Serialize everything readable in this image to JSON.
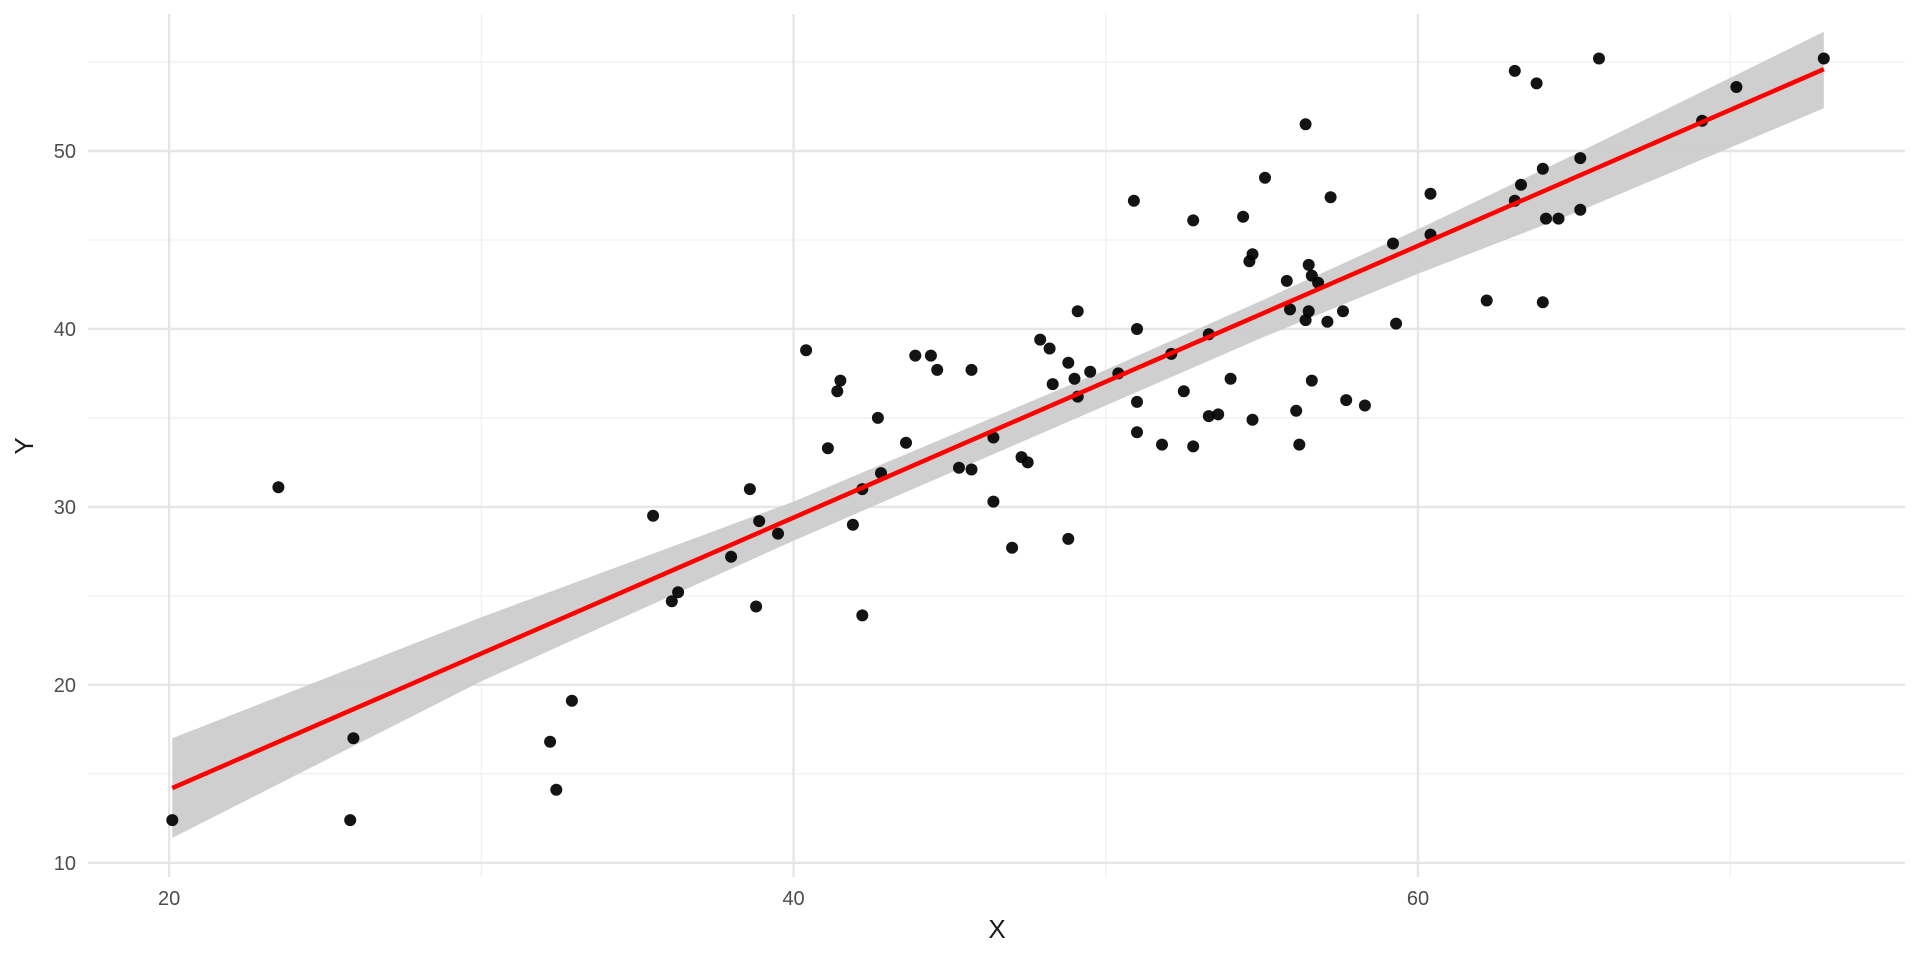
{
  "chart_data": {
    "type": "scatter",
    "title": "",
    "xlabel": "X",
    "ylabel": "Y",
    "xlim": [
      17.4,
      75.6
    ],
    "ylim": [
      9.2,
      57.7
    ],
    "x_ticks": [
      20,
      40,
      60
    ],
    "x_minor_ticks": [
      30,
      50,
      70
    ],
    "y_ticks": [
      10,
      20,
      30,
      40,
      50
    ],
    "y_minor_ticks": [
      15,
      25,
      35,
      45,
      55
    ],
    "grid": true,
    "theme": "minimal",
    "colors": {
      "points": "#000000",
      "fit_line": "#ff0000",
      "confidence_band": "#cccccc",
      "major_grid": "#e6e6e6",
      "minor_grid": "#f0f0f0"
    },
    "points": [
      {
        "x": 20.1,
        "y": 12.4
      },
      {
        "x": 23.5,
        "y": 31.1
      },
      {
        "x": 25.8,
        "y": 12.4
      },
      {
        "x": 25.9,
        "y": 17.0
      },
      {
        "x": 32.2,
        "y": 16.8
      },
      {
        "x": 32.4,
        "y": 14.1
      },
      {
        "x": 32.9,
        "y": 19.1
      },
      {
        "x": 35.5,
        "y": 29.5
      },
      {
        "x": 36.1,
        "y": 24.7
      },
      {
        "x": 36.3,
        "y": 25.2
      },
      {
        "x": 38.0,
        "y": 27.2
      },
      {
        "x": 38.6,
        "y": 31.0
      },
      {
        "x": 38.8,
        "y": 24.4
      },
      {
        "x": 38.9,
        "y": 29.2
      },
      {
        "x": 39.5,
        "y": 28.5
      },
      {
        "x": 40.4,
        "y": 38.8
      },
      {
        "x": 41.1,
        "y": 33.3
      },
      {
        "x": 41.4,
        "y": 36.5
      },
      {
        "x": 41.5,
        "y": 37.1
      },
      {
        "x": 41.9,
        "y": 29.0
      },
      {
        "x": 42.2,
        "y": 31.0
      },
      {
        "x": 42.2,
        "y": 23.9
      },
      {
        "x": 42.7,
        "y": 35.0
      },
      {
        "x": 42.8,
        "y": 31.9
      },
      {
        "x": 43.6,
        "y": 33.6
      },
      {
        "x": 43.9,
        "y": 38.5
      },
      {
        "x": 44.4,
        "y": 38.5
      },
      {
        "x": 44.6,
        "y": 37.7
      },
      {
        "x": 45.3,
        "y": 32.2
      },
      {
        "x": 45.7,
        "y": 37.7
      },
      {
        "x": 45.7,
        "y": 32.1
      },
      {
        "x": 46.4,
        "y": 33.9
      },
      {
        "x": 46.4,
        "y": 30.3
      },
      {
        "x": 47.0,
        "y": 27.7
      },
      {
        "x": 47.3,
        "y": 32.8
      },
      {
        "x": 47.5,
        "y": 32.5
      },
      {
        "x": 47.9,
        "y": 39.4
      },
      {
        "x": 48.2,
        "y": 38.9
      },
      {
        "x": 48.3,
        "y": 36.9
      },
      {
        "x": 48.8,
        "y": 38.1
      },
      {
        "x": 48.8,
        "y": 28.2
      },
      {
        "x": 49.0,
        "y": 37.2
      },
      {
        "x": 49.1,
        "y": 36.2
      },
      {
        "x": 49.1,
        "y": 41.0
      },
      {
        "x": 49.5,
        "y": 37.6
      },
      {
        "x": 50.4,
        "y": 37.5
      },
      {
        "x": 50.9,
        "y": 47.2
      },
      {
        "x": 51.0,
        "y": 40.0
      },
      {
        "x": 51.0,
        "y": 35.9
      },
      {
        "x": 51.0,
        "y": 34.2
      },
      {
        "x": 51.8,
        "y": 33.5
      },
      {
        "x": 52.1,
        "y": 38.6
      },
      {
        "x": 52.5,
        "y": 36.5
      },
      {
        "x": 52.8,
        "y": 33.4
      },
      {
        "x": 52.8,
        "y": 46.1
      },
      {
        "x": 53.3,
        "y": 39.7
      },
      {
        "x": 53.3,
        "y": 35.1
      },
      {
        "x": 53.6,
        "y": 35.2
      },
      {
        "x": 54.0,
        "y": 37.2
      },
      {
        "x": 54.4,
        "y": 46.3
      },
      {
        "x": 54.6,
        "y": 43.8
      },
      {
        "x": 54.7,
        "y": 44.2
      },
      {
        "x": 54.7,
        "y": 34.9
      },
      {
        "x": 55.1,
        "y": 48.5
      },
      {
        "x": 55.8,
        "y": 42.7
      },
      {
        "x": 55.9,
        "y": 41.1
      },
      {
        "x": 56.1,
        "y": 35.4
      },
      {
        "x": 56.2,
        "y": 33.5
      },
      {
        "x": 56.4,
        "y": 40.5
      },
      {
        "x": 56.4,
        "y": 51.5
      },
      {
        "x": 56.5,
        "y": 41.0
      },
      {
        "x": 56.5,
        "y": 43.6
      },
      {
        "x": 56.6,
        "y": 43.0
      },
      {
        "x": 56.6,
        "y": 37.1
      },
      {
        "x": 56.8,
        "y": 42.6
      },
      {
        "x": 57.1,
        "y": 40.4
      },
      {
        "x": 57.2,
        "y": 47.4
      },
      {
        "x": 57.6,
        "y": 41.0
      },
      {
        "x": 57.7,
        "y": 36.0
      },
      {
        "x": 58.3,
        "y": 35.7
      },
      {
        "x": 59.2,
        "y": 44.8
      },
      {
        "x": 59.3,
        "y": 40.3
      },
      {
        "x": 60.4,
        "y": 45.3
      },
      {
        "x": 60.4,
        "y": 47.6
      },
      {
        "x": 62.2,
        "y": 41.6
      },
      {
        "x": 63.1,
        "y": 47.2
      },
      {
        "x": 63.1,
        "y": 54.5
      },
      {
        "x": 63.3,
        "y": 48.1
      },
      {
        "x": 63.8,
        "y": 53.8
      },
      {
        "x": 64.0,
        "y": 49.0
      },
      {
        "x": 64.0,
        "y": 41.5
      },
      {
        "x": 64.1,
        "y": 46.2
      },
      {
        "x": 64.5,
        "y": 46.2
      },
      {
        "x": 65.2,
        "y": 49.6
      },
      {
        "x": 65.2,
        "y": 46.7
      },
      {
        "x": 65.8,
        "y": 55.2
      },
      {
        "x": 69.1,
        "y": 51.7
      },
      {
        "x": 70.2,
        "y": 53.6
      },
      {
        "x": 73.0,
        "y": 55.2
      }
    ],
    "fit_line": {
      "x": [
        20.1,
        73.0
      ],
      "y": [
        14.2,
        54.6
      ]
    },
    "confidence_band": {
      "x": [
        20.1,
        30.0,
        40.0,
        45.0,
        50.0,
        55.0,
        60.0,
        65.0,
        73.0
      ],
      "lower": [
        11.4,
        20.2,
        28.1,
        31.9,
        35.7,
        39.5,
        43.1,
        46.5,
        52.4
      ],
      "upper": [
        17.0,
        23.8,
        30.3,
        34.0,
        37.7,
        41.6,
        45.6,
        49.8,
        56.7
      ]
    }
  }
}
